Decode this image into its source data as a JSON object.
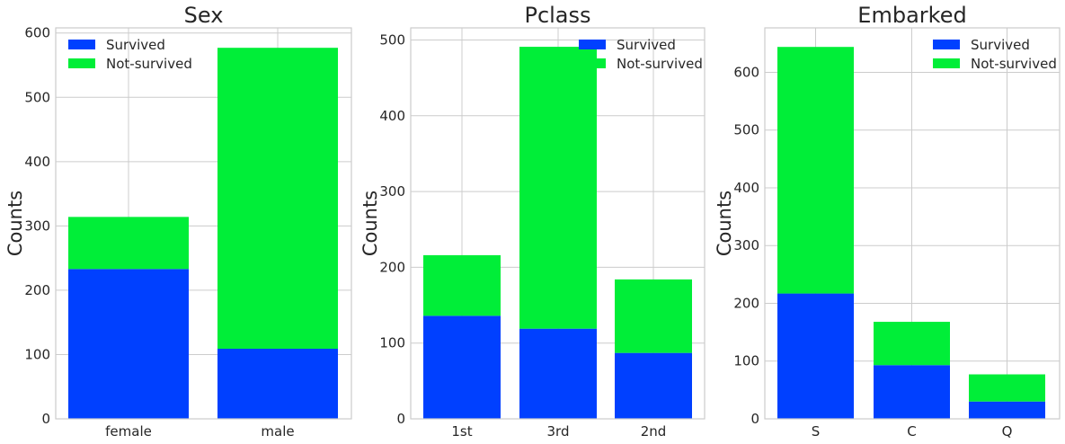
{
  "colors": {
    "survived": "#0040ff",
    "not_survived": "#00ee38",
    "grid": "#cccccc",
    "axes_edge": "#cccccc",
    "background": "#ffffff"
  },
  "chart_data": [
    {
      "type": "bar",
      "stacked": true,
      "title": "Sex",
      "xlabel": "",
      "ylabel": "Counts",
      "categories": [
        "female",
        "male"
      ],
      "series": [
        {
          "name": "Survived",
          "values": [
            233,
            109
          ]
        },
        {
          "name": "Not-survived",
          "values": [
            81,
            468
          ]
        }
      ],
      "ylim": [
        0,
        608
      ],
      "yticks": [
        0,
        100,
        200,
        300,
        400,
        500,
        600
      ],
      "legend": "top-left",
      "grid": true
    },
    {
      "type": "bar",
      "stacked": true,
      "title": "Pclass",
      "xlabel": "",
      "ylabel": "Counts",
      "categories": [
        "1st",
        "3rd",
        "2nd"
      ],
      "series": [
        {
          "name": "Survived",
          "values": [
            136,
            119,
            87
          ]
        },
        {
          "name": "Not-survived",
          "values": [
            80,
            372,
            97
          ]
        }
      ],
      "ylim": [
        0,
        516
      ],
      "yticks": [
        0,
        100,
        200,
        300,
        400,
        500
      ],
      "legend": "top-right",
      "grid": true
    },
    {
      "type": "bar",
      "stacked": true,
      "title": "Embarked",
      "xlabel": "",
      "ylabel": "Counts",
      "categories": [
        "S",
        "C",
        "Q"
      ],
      "series": [
        {
          "name": "Survived",
          "values": [
            217,
            93,
            30
          ]
        },
        {
          "name": "Not-survived",
          "values": [
            427,
            75,
            47
          ]
        }
      ],
      "ylim": [
        0,
        677
      ],
      "yticks": [
        0,
        100,
        200,
        300,
        400,
        500,
        600
      ],
      "legend": "top-right",
      "grid": true
    }
  ]
}
